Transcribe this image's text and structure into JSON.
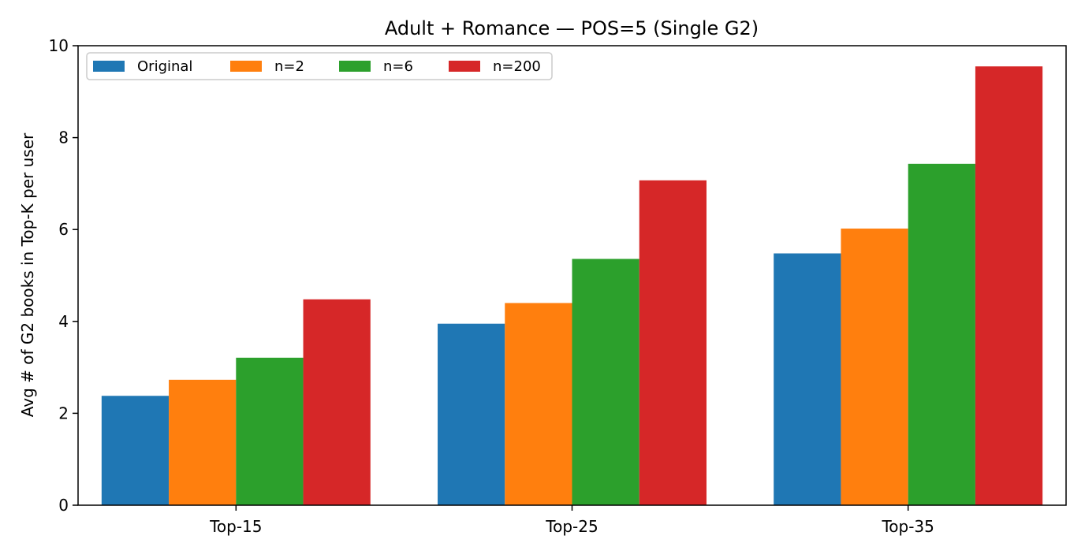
{
  "chart_data": {
    "type": "bar",
    "title": "Adult + Romance — POS=5 (Single G2)",
    "xlabel": "",
    "ylabel": "Avg # of G2 books in Top-K per user",
    "categories": [
      "Top-15",
      "Top-25",
      "Top-35"
    ],
    "ylim": [
      0,
      10
    ],
    "yticks": [
      0,
      2,
      4,
      6,
      8,
      10
    ],
    "grid": false,
    "legend": {
      "placement": "top-left",
      "columns": 4
    },
    "series": [
      {
        "name": "Original",
        "color": "#1f77b4",
        "values": [
          2.38,
          3.95,
          5.48
        ]
      },
      {
        "name": "n=2",
        "color": "#ff7f0e",
        "values": [
          2.73,
          4.4,
          6.02
        ]
      },
      {
        "name": "n=6",
        "color": "#2ca02c",
        "values": [
          3.21,
          5.36,
          7.43
        ]
      },
      {
        "name": "n=200",
        "color": "#d62728",
        "values": [
          4.48,
          7.07,
          9.55
        ]
      }
    ]
  }
}
